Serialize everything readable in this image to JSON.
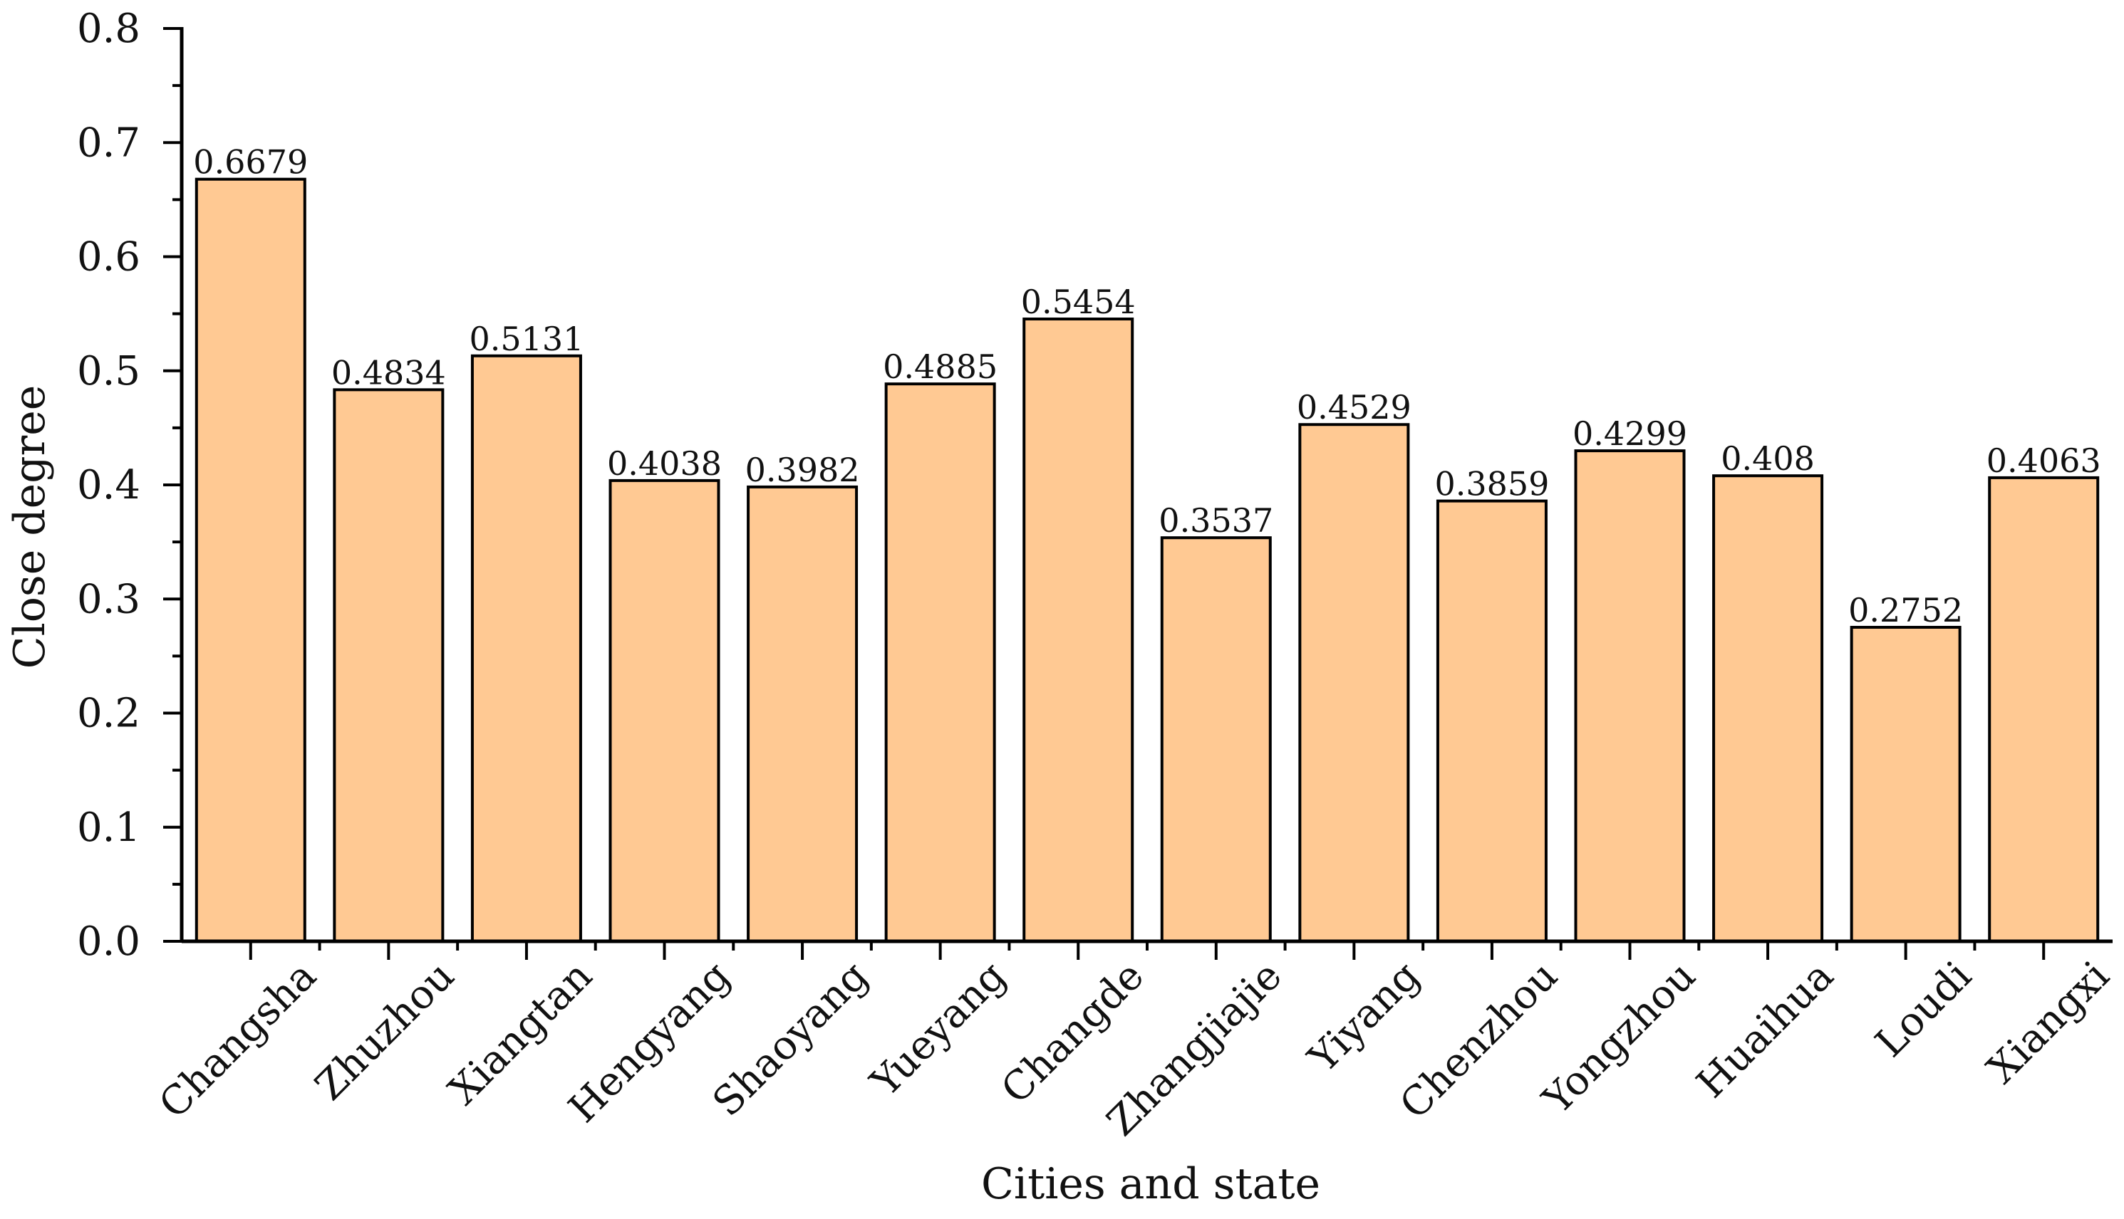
{
  "chart_data": {
    "type": "bar",
    "title": "",
    "xlabel": "Cities and state",
    "ylabel": "Close degree",
    "ylim": [
      0,
      0.8
    ],
    "yticks": [
      "0.0",
      "0.1",
      "0.2",
      "0.3",
      "0.4",
      "0.5",
      "0.6",
      "0.7",
      "0.8"
    ],
    "ytick_values": [
      0,
      0.1,
      0.2,
      0.3,
      0.4,
      0.5,
      0.6,
      0.7,
      0.8
    ],
    "grid": false,
    "categories": [
      "Changsha",
      "Zhuzhou",
      "Xiangtan",
      "Hengyang",
      "Shaoyang",
      "Yueyang",
      "Changde",
      "Zhangjiajie",
      "Yiyang",
      "Chenzhou",
      "Yongzhou",
      "Huaihua",
      "Loudi",
      "Xiangxi"
    ],
    "values": [
      0.6679,
      0.4834,
      0.5131,
      0.4038,
      0.3982,
      0.4885,
      0.5454,
      0.3537,
      0.4529,
      0.3859,
      0.4299,
      0.408,
      0.2752,
      0.4063
    ],
    "value_labels": [
      "0.6679",
      "0.4834",
      "0.5131",
      "0.4038",
      "0.3982",
      "0.4885",
      "0.5454",
      "0.3537",
      "0.4529",
      "0.3859",
      "0.4299",
      "0.408",
      "0.2752",
      "0.4063"
    ],
    "bar_color": "#FFC993",
    "edge_color": "#000000"
  }
}
